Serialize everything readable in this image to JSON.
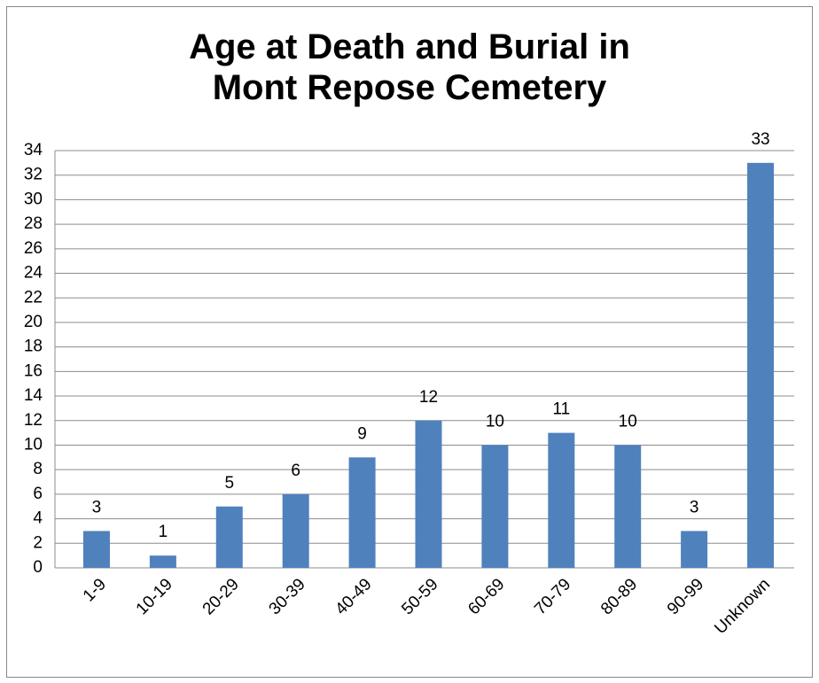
{
  "chart_data": {
    "type": "bar",
    "title": "Age at Death and Burial in Mont Repose Cemetery",
    "categories": [
      "1-9",
      "10-19",
      "20-29",
      "30-39",
      "40-49",
      "50-59",
      "60-69",
      "70-79",
      "80-89",
      "90-99",
      "Unknown"
    ],
    "values": [
      3,
      1,
      5,
      6,
      9,
      12,
      10,
      11,
      10,
      3,
      33
    ],
    "color": "#4f81bd",
    "ylim": [
      0,
      34
    ],
    "yticks": [
      0,
      2,
      4,
      6,
      8,
      10,
      12,
      14,
      16,
      18,
      20,
      22,
      24,
      26,
      28,
      30,
      32,
      34
    ],
    "grid": true
  }
}
